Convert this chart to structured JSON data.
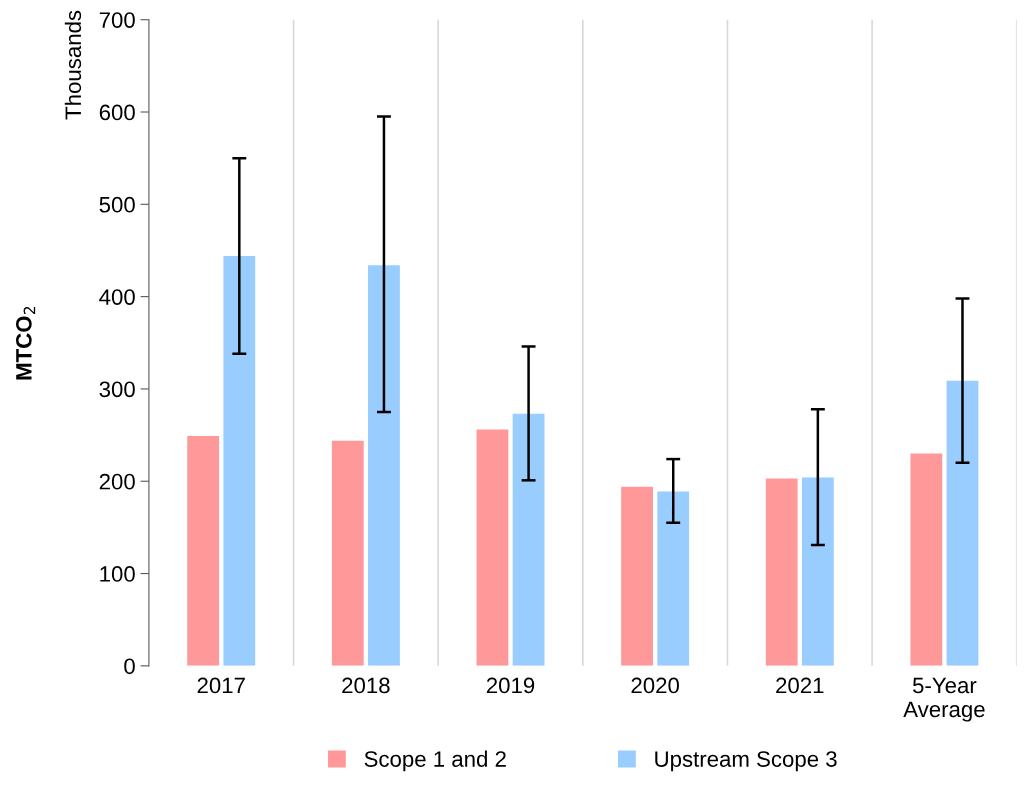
{
  "chart_data": {
    "type": "bar",
    "ylabel": "MTCO$_{2}$",
    "annotations": [
      "Thousands"
    ],
    "categories": [
      "2017",
      "2018",
      "2019",
      "2020",
      "2021",
      "5-Year\nAverage"
    ],
    "series": [
      {
        "name": "Scope 1 and 2",
        "color": "#ff9999",
        "values": [
          249,
          244,
          256,
          194,
          203,
          230
        ]
      },
      {
        "name": "Upstream Scope 3",
        "color": "#99ccff",
        "values": [
          444,
          434,
          273,
          189,
          204,
          309
        ],
        "errors": [
          [
            338,
            550
          ],
          [
            275,
            595
          ],
          [
            201,
            346
          ],
          [
            155,
            224
          ],
          [
            131,
            278
          ],
          [
            220,
            398
          ]
        ]
      }
    ],
    "ylim": [
      0,
      700
    ],
    "yticks": [
      0,
      100,
      200,
      300,
      400,
      500,
      600,
      700
    ],
    "grid": "x",
    "legend": "bottom"
  }
}
